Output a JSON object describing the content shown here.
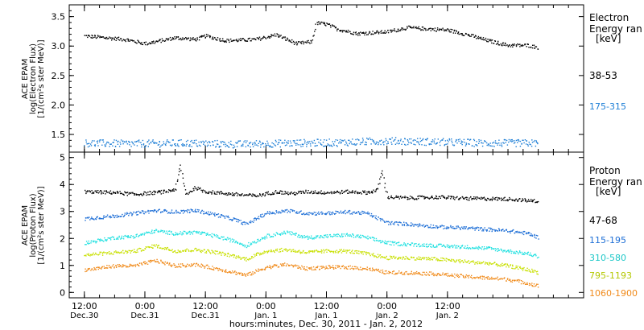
{
  "chart_data": [
    {
      "type": "scatter",
      "panel": "electron",
      "ylabel_lines": [
        "ACE EPAM",
        "log(Electron Flux)",
        "[1/(cm²s ster MeV)]"
      ],
      "ylim": [
        1.2,
        3.7
      ],
      "yticks": [
        1.5,
        2.0,
        2.5,
        3.0,
        3.5
      ],
      "ytick_labels": [
        "1.5",
        "2.0",
        "2.5",
        "3.0",
        "3.5"
      ],
      "legend": {
        "title_lines": [
          "Electron",
          "Energy ran",
          "[keV]"
        ],
        "placement": "right"
      },
      "series": [
        {
          "name": "38-53",
          "color": "#000000",
          "points": [
            [
              0,
              3.18
            ],
            [
              4,
              3.15
            ],
            [
              8,
              3.12
            ],
            [
              12,
              3.05
            ],
            [
              14,
              3.08
            ],
            [
              18,
              3.15
            ],
            [
              22,
              3.12
            ],
            [
              24,
              3.18
            ],
            [
              28,
              3.1
            ],
            [
              34,
              3.12
            ],
            [
              38,
              3.2
            ],
            [
              42,
              3.05
            ],
            [
              45,
              3.08
            ],
            [
              46,
              3.4
            ],
            [
              48,
              3.38
            ],
            [
              50,
              3.3
            ],
            [
              54,
              3.22
            ],
            [
              58,
              3.24
            ],
            [
              60,
              3.25
            ],
            [
              64,
              3.32
            ],
            [
              68,
              3.3
            ],
            [
              72,
              3.28
            ],
            [
              76,
              3.2
            ],
            [
              80,
              3.1
            ],
            [
              84,
              3.02
            ],
            [
              88,
              3.02
            ],
            [
              90,
              2.98
            ]
          ]
        },
        {
          "name": "175-315",
          "color": "#1e7fd6",
          "points": [
            [
              0,
              1.36
            ],
            [
              10,
              1.35
            ],
            [
              20,
              1.36
            ],
            [
              30,
              1.34
            ],
            [
              40,
              1.36
            ],
            [
              50,
              1.37
            ],
            [
              60,
              1.4
            ],
            [
              70,
              1.38
            ],
            [
              80,
              1.36
            ],
            [
              90,
              1.36
            ]
          ]
        }
      ]
    },
    {
      "type": "scatter",
      "panel": "proton",
      "ylabel_lines": [
        "ACE EPAM",
        "log(Proton Flux)",
        "[1/(cm²s ster MeV)]"
      ],
      "ylim": [
        -0.2,
        5.2
      ],
      "yticks": [
        0,
        1,
        2,
        3,
        4,
        5
      ],
      "ytick_labels": [
        "0",
        "1",
        "2",
        "3",
        "4",
        "5"
      ],
      "legend": {
        "title_lines": [
          "Proton",
          "Energy ran",
          "[keV]"
        ],
        "placement": "right"
      },
      "series": [
        {
          "name": "47-68",
          "color": "#000000",
          "points": [
            [
              0,
              3.75
            ],
            [
              6,
              3.72
            ],
            [
              10,
              3.65
            ],
            [
              14,
              3.72
            ],
            [
              16,
              3.75
            ],
            [
              18,
              3.85
            ],
            [
              19,
              4.7
            ],
            [
              20,
              3.65
            ],
            [
              22,
              3.9
            ],
            [
              24,
              3.75
            ],
            [
              30,
              3.65
            ],
            [
              34,
              3.6
            ],
            [
              38,
              3.75
            ],
            [
              41,
              3.68
            ],
            [
              42,
              3.7
            ],
            [
              44,
              3.75
            ],
            [
              48,
              3.72
            ],
            [
              52,
              3.75
            ],
            [
              56,
              3.72
            ],
            [
              58,
              3.8
            ],
            [
              59,
              4.5
            ],
            [
              60,
              3.55
            ],
            [
              64,
              3.52
            ],
            [
              70,
              3.55
            ],
            [
              76,
              3.5
            ],
            [
              84,
              3.48
            ],
            [
              88,
              3.42
            ],
            [
              90,
              3.4
            ]
          ]
        },
        {
          "name": "115-195",
          "color": "#1e6fd6",
          "points": [
            [
              0,
              2.75
            ],
            [
              6,
              2.85
            ],
            [
              10,
              2.95
            ],
            [
              14,
              3.05
            ],
            [
              18,
              3.0
            ],
            [
              22,
              3.05
            ],
            [
              26,
              2.9
            ],
            [
              30,
              2.7
            ],
            [
              32,
              2.55
            ],
            [
              36,
              2.95
            ],
            [
              40,
              3.05
            ],
            [
              44,
              2.95
            ],
            [
              48,
              2.95
            ],
            [
              52,
              3.0
            ],
            [
              56,
              2.95
            ],
            [
              60,
              2.6
            ],
            [
              64,
              2.55
            ],
            [
              70,
              2.45
            ],
            [
              76,
              2.4
            ],
            [
              80,
              2.35
            ],
            [
              84,
              2.3
            ],
            [
              88,
              2.2
            ],
            [
              90,
              2.05
            ]
          ]
        },
        {
          "name": "310-580",
          "color": "#1ee0e0",
          "points": [
            [
              0,
              1.85
            ],
            [
              6,
              2.05
            ],
            [
              10,
              2.1
            ],
            [
              14,
              2.3
            ],
            [
              18,
              2.2
            ],
            [
              22,
              2.25
            ],
            [
              26,
              2.1
            ],
            [
              30,
              1.9
            ],
            [
              32,
              1.75
            ],
            [
              36,
              2.1
            ],
            [
              40,
              2.25
            ],
            [
              44,
              2.05
            ],
            [
              48,
              2.1
            ],
            [
              52,
              2.15
            ],
            [
              56,
              2.05
            ],
            [
              60,
              1.85
            ],
            [
              64,
              1.8
            ],
            [
              70,
              1.75
            ],
            [
              76,
              1.7
            ],
            [
              80,
              1.65
            ],
            [
              84,
              1.55
            ],
            [
              88,
              1.45
            ],
            [
              90,
              1.35
            ]
          ]
        },
        {
          "name": "795-1193",
          "color": "#c8e000",
          "points": [
            [
              0,
              1.4
            ],
            [
              6,
              1.5
            ],
            [
              10,
              1.55
            ],
            [
              14,
              1.75
            ],
            [
              18,
              1.55
            ],
            [
              22,
              1.6
            ],
            [
              26,
              1.5
            ],
            [
              30,
              1.35
            ],
            [
              32,
              1.25
            ],
            [
              36,
              1.55
            ],
            [
              40,
              1.6
            ],
            [
              44,
              1.5
            ],
            [
              48,
              1.55
            ],
            [
              52,
              1.55
            ],
            [
              56,
              1.45
            ],
            [
              60,
              1.3
            ],
            [
              64,
              1.3
            ],
            [
              70,
              1.25
            ],
            [
              76,
              1.15
            ],
            [
              80,
              1.1
            ],
            [
              84,
              1.0
            ],
            [
              88,
              0.85
            ],
            [
              90,
              0.75
            ]
          ]
        },
        {
          "name": "1060-1900",
          "color": "#f08a1a",
          "points": [
            [
              0,
              0.85
            ],
            [
              6,
              1.0
            ],
            [
              10,
              1.0
            ],
            [
              14,
              1.2
            ],
            [
              18,
              1.0
            ],
            [
              22,
              1.05
            ],
            [
              26,
              0.9
            ],
            [
              30,
              0.75
            ],
            [
              32,
              0.65
            ],
            [
              36,
              0.95
            ],
            [
              40,
              1.05
            ],
            [
              44,
              0.9
            ],
            [
              48,
              0.95
            ],
            [
              52,
              0.95
            ],
            [
              56,
              0.9
            ],
            [
              60,
              0.75
            ],
            [
              64,
              0.75
            ],
            [
              70,
              0.7
            ],
            [
              76,
              0.6
            ],
            [
              80,
              0.55
            ],
            [
              84,
              0.5
            ],
            [
              88,
              0.35
            ],
            [
              90,
              0.25
            ]
          ]
        }
      ]
    }
  ],
  "x_axis": {
    "title": "hours:minutes, Dec. 30, 2011 - Jan. 2, 2012",
    "xlim": [
      -3,
      99
    ],
    "ticks": [
      {
        "x": 0,
        "time": "12:00",
        "date": "Dec.30"
      },
      {
        "x": 12,
        "time": "0:00",
        "date": "Dec.31"
      },
      {
        "x": 24,
        "time": "12:00",
        "date": "Dec.31"
      },
      {
        "x": 36,
        "time": "0:00",
        "date": "Jan. 1"
      },
      {
        "x": 48,
        "time": "12:00",
        "date": "Jan. 1"
      },
      {
        "x": 60,
        "time": "0:00",
        "date": "Jan. 2"
      },
      {
        "x": 72,
        "time": "12:00",
        "date": "Jan. 2"
      }
    ]
  }
}
